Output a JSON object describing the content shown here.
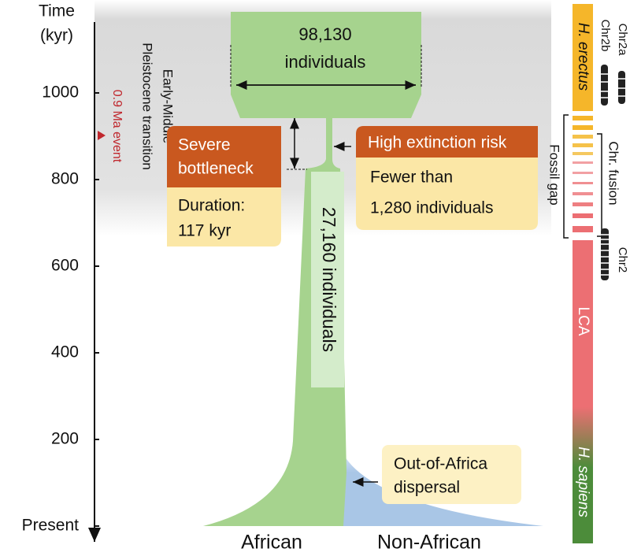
{
  "axis": {
    "title": [
      "Time",
      "(kyr)"
    ],
    "ticks": [
      "1000",
      "800",
      "600",
      "400",
      "200",
      "Present"
    ]
  },
  "annotations": {
    "transition": [
      "Early-Middle",
      "Pleistocene transition"
    ],
    "event": "0.9 Ma event"
  },
  "population": {
    "ancestral": [
      "98,130",
      "individuals"
    ],
    "bottleneck": "27,160 individuals"
  },
  "boxes": {
    "severe": {
      "header": [
        "Severe",
        "bottleneck"
      ],
      "body": [
        "Duration:",
        "117 kyr"
      ]
    },
    "extinction": {
      "header": "High extinction risk",
      "body": [
        "Fewer than",
        "1,280 individuals"
      ]
    },
    "dispersal": [
      "Out-of-Africa",
      "dispersal"
    ]
  },
  "groups": [
    "African",
    "Non-African"
  ],
  "lineage": {
    "erectus": "H. erectus",
    "lca": "LCA",
    "sapiens": "H. sapiens",
    "fossil_gap": "Fossil gap",
    "fusion": "Chr. fusion",
    "chromosomes": [
      "Chr2a",
      "Chr2b",
      "Chr2"
    ]
  }
}
